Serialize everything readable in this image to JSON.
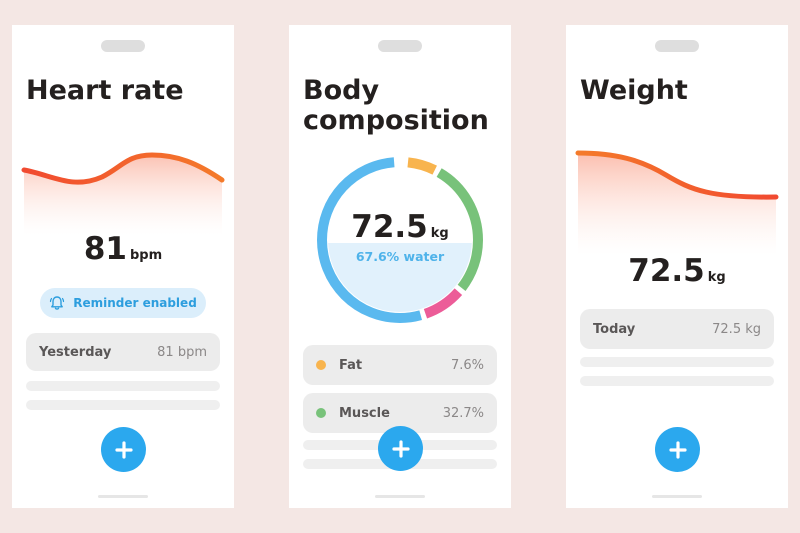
{
  "heart": {
    "title": "Heart rate",
    "value": "81",
    "unit": "bpm",
    "reminder_label": "Reminder enabled",
    "rows": [
      {
        "label": "Yesterday",
        "value": "81 bpm"
      }
    ]
  },
  "body": {
    "title_line1": "Body",
    "title_line2": "composition",
    "value": "72.5",
    "unit": "kg",
    "water_label": "67.6% water",
    "rows": [
      {
        "label": "Fat",
        "value": "7.6%"
      },
      {
        "label": "Muscle",
        "value": "32.7%"
      }
    ]
  },
  "weight": {
    "title": "Weight",
    "value": "72.5",
    "unit": "kg",
    "rows": [
      {
        "label": "Today",
        "value": "72.5 kg"
      }
    ]
  },
  "colors": {
    "accent_blue": "#2ba8ee",
    "fat": "#f8b44e",
    "muscle": "#78c27a",
    "pink": "#ec5c98",
    "ring_blue": "#5ab9ef",
    "curve_orange": "#f26a2d"
  },
  "icons": {
    "reminder": "bell-icon",
    "add": "plus-icon"
  }
}
